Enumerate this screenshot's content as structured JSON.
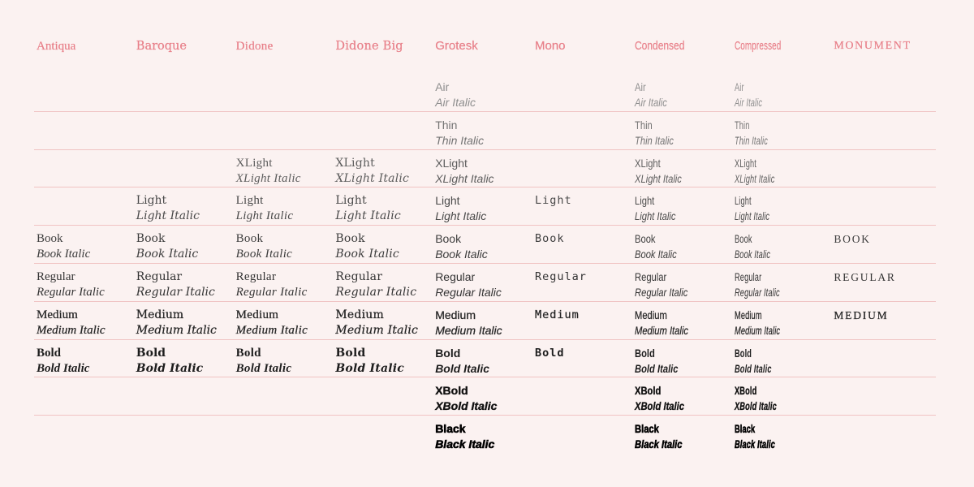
{
  "palette": {
    "background": "#fbf2f1",
    "header_text": "#e8808a",
    "rule": "#f0c3c3",
    "ink": "#3a3a3a"
  },
  "columns": [
    {
      "id": "antiqua",
      "label": "Antiqua"
    },
    {
      "id": "baroque",
      "label": "Baroque"
    },
    {
      "id": "didone",
      "label": "Didone"
    },
    {
      "id": "didone-big",
      "label": "Didone Big"
    },
    {
      "id": "grotesk",
      "label": "Grotesk"
    },
    {
      "id": "mono",
      "label": "Mono"
    },
    {
      "id": "condensed",
      "label": "Condensed"
    },
    {
      "id": "compressed",
      "label": "Compressed"
    },
    {
      "id": "monument",
      "label": "MONUMENT"
    }
  ],
  "rows": [
    {
      "slug": "air",
      "label": "Air",
      "cells": [
        null,
        null,
        null,
        null,
        {
          "roman": "Air",
          "italic": "Air Italic"
        },
        null,
        {
          "roman": "Air",
          "italic": "Air Italic"
        },
        {
          "roman": "Air",
          "italic": "Air Italic"
        },
        null
      ]
    },
    {
      "slug": "thin",
      "label": "Thin",
      "cells": [
        null,
        null,
        null,
        null,
        {
          "roman": "Thin",
          "italic": "Thin Italic"
        },
        null,
        {
          "roman": "Thin",
          "italic": "Thin Italic"
        },
        {
          "roman": "Thin",
          "italic": "Thin Italic"
        },
        null
      ]
    },
    {
      "slug": "xlight",
      "label": "XLight",
      "cells": [
        null,
        null,
        {
          "roman": "XLight",
          "italic": "XLight Italic"
        },
        {
          "roman": "XLight",
          "italic": "XLight Italic"
        },
        {
          "roman": "XLight",
          "italic": "XLight Italic"
        },
        null,
        {
          "roman": "XLight",
          "italic": "XLight Italic"
        },
        {
          "roman": "XLight",
          "italic": "XLight Italic"
        },
        null
      ]
    },
    {
      "slug": "light",
      "label": "Light",
      "cells": [
        null,
        {
          "roman": "Light",
          "italic": "Light Italic"
        },
        {
          "roman": "Light",
          "italic": "Light Italic"
        },
        {
          "roman": "Light",
          "italic": "Light Italic"
        },
        {
          "roman": "Light",
          "italic": "Light Italic"
        },
        {
          "roman": "Light",
          "italic": null
        },
        {
          "roman": "Light",
          "italic": "Light Italic"
        },
        {
          "roman": "Light",
          "italic": "Light Italic"
        },
        null
      ]
    },
    {
      "slug": "book",
      "label": "Book",
      "cells": [
        {
          "roman": "Book",
          "italic": "Book Italic"
        },
        {
          "roman": "Book",
          "italic": "Book Italic"
        },
        {
          "roman": "Book",
          "italic": "Book Italic"
        },
        {
          "roman": "Book",
          "italic": "Book Italic"
        },
        {
          "roman": "Book",
          "italic": "Book Italic"
        },
        {
          "roman": "Book",
          "italic": null
        },
        {
          "roman": "Book",
          "italic": "Book Italic"
        },
        {
          "roman": "Book",
          "italic": "Book Italic"
        },
        {
          "roman": "BOOK",
          "italic": null
        }
      ]
    },
    {
      "slug": "regular",
      "label": "Regular",
      "cells": [
        {
          "roman": "Regular",
          "italic": "Regular Italic"
        },
        {
          "roman": "Regular",
          "italic": "Regular Italic"
        },
        {
          "roman": "Regular",
          "italic": "Regular Italic"
        },
        {
          "roman": "Regular",
          "italic": "Regular Italic"
        },
        {
          "roman": "Regular",
          "italic": "Regular Italic"
        },
        {
          "roman": "Regular",
          "italic": null
        },
        {
          "roman": "Regular",
          "italic": "Regular Italic"
        },
        {
          "roman": "Regular",
          "italic": "Regular Italic"
        },
        {
          "roman": "REGULAR",
          "italic": null
        }
      ]
    },
    {
      "slug": "medium",
      "label": "Medium",
      "cells": [
        {
          "roman": "Medium",
          "italic": "Medium Italic"
        },
        {
          "roman": "Medium",
          "italic": "Medium Italic"
        },
        {
          "roman": "Medium",
          "italic": "Medium Italic"
        },
        {
          "roman": "Medium",
          "italic": "Medium Italic"
        },
        {
          "roman": "Medium",
          "italic": "Medium Italic"
        },
        {
          "roman": "Medium",
          "italic": null
        },
        {
          "roman": "Medium",
          "italic": "Medium Italic"
        },
        {
          "roman": "Medium",
          "italic": "Medium Italic"
        },
        {
          "roman": "MEDIUM",
          "italic": null
        }
      ]
    },
    {
      "slug": "bold",
      "label": "Bold",
      "cells": [
        {
          "roman": "Bold",
          "italic": "Bold Italic"
        },
        {
          "roman": "Bold",
          "italic": "Bold Italic"
        },
        {
          "roman": "Bold",
          "italic": "Bold Italic"
        },
        {
          "roman": "Bold",
          "italic": "Bold Italic"
        },
        {
          "roman": "Bold",
          "italic": "Bold Italic"
        },
        {
          "roman": "Bold",
          "italic": null
        },
        {
          "roman": "Bold",
          "italic": "Bold Italic"
        },
        {
          "roman": "Bold",
          "italic": "Bold Italic"
        },
        null
      ]
    },
    {
      "slug": "xbold",
      "label": "XBold",
      "cells": [
        null,
        null,
        null,
        null,
        {
          "roman": "XBold",
          "italic": "XBold Italic"
        },
        null,
        {
          "roman": "XBold",
          "italic": "XBold Italic"
        },
        {
          "roman": "XBold",
          "italic": "XBold Italic"
        },
        null
      ]
    },
    {
      "slug": "black",
      "label": "Black",
      "cells": [
        null,
        null,
        null,
        null,
        {
          "roman": "Black",
          "italic": "Black Italic"
        },
        null,
        {
          "roman": "Black",
          "italic": "Black Italic"
        },
        {
          "roman": "Black",
          "italic": "Black Italic"
        },
        null
      ]
    }
  ]
}
